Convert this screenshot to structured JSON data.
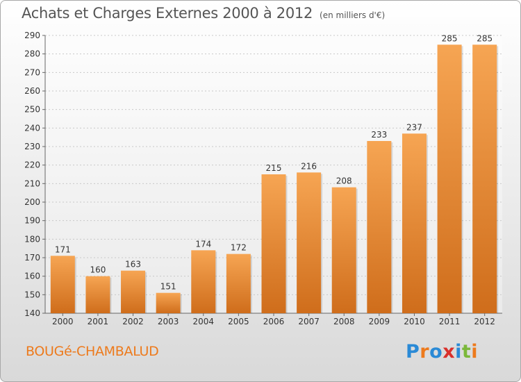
{
  "title": "Achats et Charges Externes 2000 à 2012",
  "unit_note": "(en milliers d'€)",
  "place_name": "BOUGé-CHAMBALUD",
  "logo": {
    "text": "Proxiti",
    "letter_colors": [
      "#2a8ad6",
      "#ed7a1c",
      "#2a8ad6",
      "#d9302b",
      "#2a8ad6",
      "#7bb83a",
      "#ed7a1c"
    ]
  },
  "colors": {
    "bar_light": "#f6a553",
    "bar_dark": "#cf6d1b",
    "accent": "#ed7a1c"
  },
  "chart_data": {
    "type": "bar",
    "title": "Achats et Charges Externes 2000 à 2012",
    "categories": [
      "2000",
      "2001",
      "2002",
      "2003",
      "2004",
      "2005",
      "2006",
      "2007",
      "2008",
      "2009",
      "2010",
      "2011",
      "2012"
    ],
    "values": [
      171,
      160,
      163,
      151,
      174,
      172,
      215,
      216,
      208,
      233,
      237,
      285,
      285
    ],
    "ylim": [
      140,
      290
    ],
    "yticks": [
      140,
      150,
      160,
      170,
      180,
      190,
      200,
      210,
      220,
      230,
      240,
      250,
      260,
      270,
      280,
      290
    ],
    "grid": true
  }
}
